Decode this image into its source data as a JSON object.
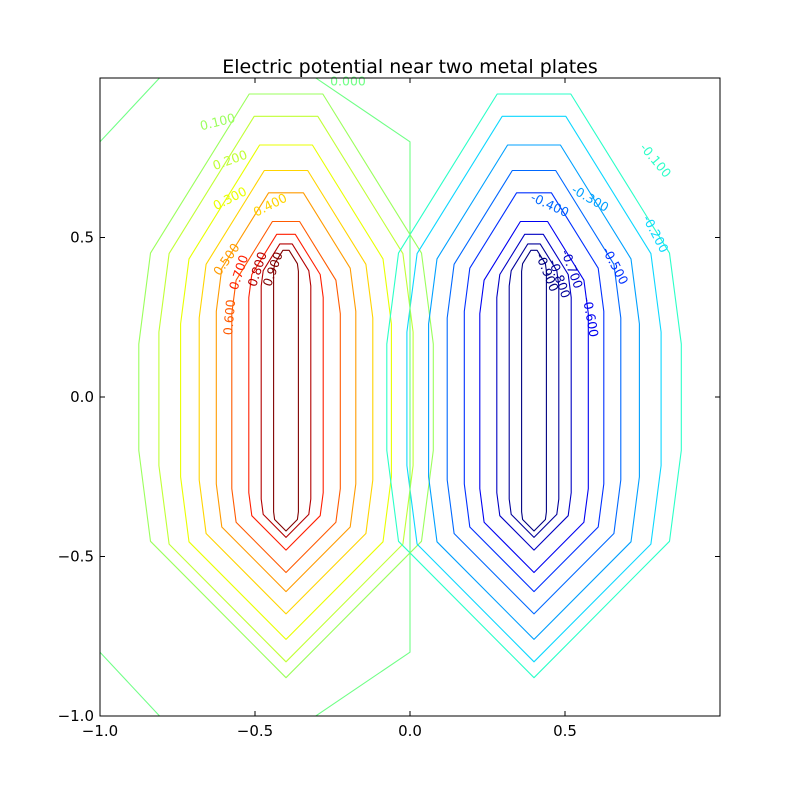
{
  "chart_data": {
    "type": "contour",
    "title": "Electric potential near two metal plates",
    "xlabel": "",
    "ylabel": "",
    "xlim": [
      -1.0,
      1.0
    ],
    "ylim": [
      -1.0,
      1.0
    ],
    "x_ticks": [
      -1.0,
      -0.5,
      0.0,
      0.5
    ],
    "x_tick_labels": [
      "−1.0",
      "−0.5",
      "0.0",
      "0.5"
    ],
    "y_ticks": [
      -1.0,
      -0.5,
      0.0,
      0.5
    ],
    "y_tick_labels": [
      "−1.0",
      "−0.5",
      "0.0",
      "0.5"
    ],
    "grid": false,
    "levels": [
      {
        "value": 0.9,
        "label": "0.900",
        "color": "#800000",
        "cx": -0.4,
        "hw": 0.04,
        "yb": -0.42,
        "yt": 0.46,
        "lx": -0.44,
        "ly": 0.4,
        "rot": -70
      },
      {
        "value": 0.8,
        "label": "0.800",
        "color": "#b40000",
        "cx": -0.4,
        "hw": 0.08,
        "yb": -0.44,
        "yt": 0.48,
        "lx": -0.49,
        "ly": 0.4,
        "rot": -72
      },
      {
        "value": 0.7,
        "label": "0.700",
        "color": "#ff1e00",
        "cx": -0.4,
        "hw": 0.12,
        "yb": -0.48,
        "yt": 0.51,
        "lx": -0.55,
        "ly": 0.39,
        "rot": -72
      },
      {
        "value": 0.6,
        "label": "0.600",
        "color": "#ff5a00",
        "cx": -0.4,
        "hw": 0.175,
        "yb": -0.55,
        "yt": 0.55,
        "lx": -0.58,
        "ly": 0.25,
        "rot": -85
      },
      {
        "value": 0.5,
        "label": "0.500",
        "color": "#ff9b00",
        "cx": -0.4,
        "hw": 0.225,
        "yb": -0.61,
        "yt": 0.64,
        "lx": -0.59,
        "ly": 0.43,
        "rot": -55
      },
      {
        "value": 0.4,
        "label": "0.400",
        "color": "#ffd400",
        "cx": -0.4,
        "hw": 0.28,
        "yb": -0.68,
        "yt": 0.71,
        "lx": -0.45,
        "ly": 0.6,
        "rot": -27
      },
      {
        "value": 0.3,
        "label": "0.300",
        "color": "#e9ff00",
        "cx": -0.4,
        "hw": 0.34,
        "yb": -0.76,
        "yt": 0.79,
        "lx": -0.58,
        "ly": 0.62,
        "rot": -27
      },
      {
        "value": 0.2,
        "label": "0.200",
        "color": "#c1ff36",
        "cx": -0.4,
        "hw": 0.41,
        "yb": -0.83,
        "yt": 0.88,
        "lx": -0.58,
        "ly": 0.74,
        "rot": -20
      },
      {
        "value": 0.1,
        "label": "0.100",
        "color": "#9bff5c",
        "cx": -0.4,
        "hw": 0.475,
        "yb": -0.88,
        "yt": 0.95,
        "lx": -0.62,
        "ly": 0.86,
        "rot": -14
      },
      {
        "value": -0.1,
        "label": "-0.100",
        "color": "#2bffc8",
        "cx": 0.4,
        "hw": 0.475,
        "yb": -0.88,
        "yt": 0.95,
        "lx": 0.79,
        "ly": 0.74,
        "rot": 50
      },
      {
        "value": -0.2,
        "label": "-0.200",
        "color": "#0dd7ff",
        "cx": 0.4,
        "hw": 0.41,
        "yb": -0.83,
        "yt": 0.88,
        "lx": 0.79,
        "ly": 0.51,
        "rot": 62
      },
      {
        "value": -0.3,
        "label": "-0.300",
        "color": "#00a0ff",
        "cx": 0.4,
        "hw": 0.34,
        "yb": -0.76,
        "yt": 0.79,
        "lx": 0.58,
        "ly": 0.62,
        "rot": 30
      },
      {
        "value": -0.4,
        "label": "-0.400",
        "color": "#0068ff",
        "cx": 0.4,
        "hw": 0.28,
        "yb": -0.68,
        "yt": 0.71,
        "lx": 0.45,
        "ly": 0.6,
        "rot": 25
      },
      {
        "value": -0.5,
        "label": "-0.500",
        "color": "#0030ff",
        "cx": 0.4,
        "hw": 0.225,
        "yb": -0.61,
        "yt": 0.64,
        "lx": 0.66,
        "ly": 0.41,
        "rot": 62
      },
      {
        "value": -0.6,
        "label": "-0.600",
        "color": "#0000f1",
        "cx": 0.4,
        "hw": 0.175,
        "yb": -0.55,
        "yt": 0.55,
        "lx": 0.58,
        "ly": 0.25,
        "rot": 80
      },
      {
        "value": -0.7,
        "label": "-0.700",
        "color": "#0000c4",
        "cx": 0.4,
        "hw": 0.12,
        "yb": -0.48,
        "yt": 0.51,
        "lx": 0.52,
        "ly": 0.4,
        "rot": 70
      },
      {
        "value": -0.8,
        "label": "-0.800",
        "color": "#00009a",
        "cx": 0.4,
        "hw": 0.08,
        "yb": -0.44,
        "yt": 0.48,
        "lx": 0.48,
        "ly": 0.37,
        "rot": 70
      },
      {
        "value": -0.9,
        "label": "-0.900",
        "color": "#000080",
        "cx": 0.4,
        "hw": 0.04,
        "yb": -0.42,
        "yt": 0.46,
        "lx": 0.44,
        "ly": 0.39,
        "rot": 68
      }
    ],
    "zero_contour": {
      "value": 0.0,
      "label": "0.000",
      "color": "#70ff86"
    }
  }
}
